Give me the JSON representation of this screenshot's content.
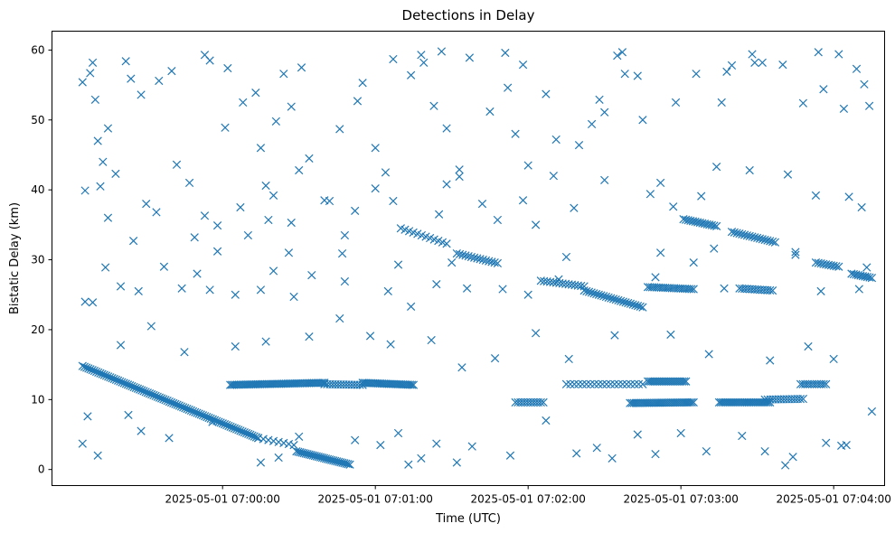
{
  "chart_data": {
    "type": "scatter",
    "title": "Detections in Delay",
    "xlabel": "Time (UTC)",
    "ylabel": "Bistatic Delay (km)",
    "marker": "x",
    "color": "#1f77b4",
    "grid": false,
    "xlim": [
      "2025-05-01 06:58:53",
      "2025-05-01 07:04:20"
    ],
    "ylim": [
      -2.3,
      62.7
    ],
    "xticks": [
      "2025-05-01 07:00:00",
      "2025-05-01 07:01:00",
      "2025-05-01 07:02:00",
      "2025-05-01 07:03:00",
      "2025-05-01 07:04:00"
    ],
    "yticks": [
      0,
      10,
      20,
      30,
      40,
      50,
      60
    ],
    "tracks": [
      {
        "t0": "2025-05-01 06:59:05",
        "t1": "2025-05-01 07:00:14",
        "y0": 14.8,
        "y1": 4.5,
        "n": 90
      },
      {
        "t0": "2025-05-01 07:00:14",
        "t1": "2025-05-01 07:00:28",
        "y0": 4.5,
        "y1": 3.5,
        "n": 8
      },
      {
        "t0": "2025-05-01 07:00:29",
        "t1": "2025-05-01 07:00:50",
        "y0": 2.6,
        "y1": 0.7,
        "n": 30
      },
      {
        "t0": "2025-05-01 07:00:03",
        "t1": "2025-05-01 07:00:40",
        "y0": 12.1,
        "y1": 12.4,
        "n": 55
      },
      {
        "t0": "2025-05-01 07:00:40",
        "t1": "2025-05-01 07:00:55",
        "y0": 12.2,
        "y1": 12.1,
        "n": 15
      },
      {
        "t0": "2025-05-01 07:00:55",
        "t1": "2025-05-01 07:01:15",
        "y0": 12.4,
        "y1": 12.1,
        "n": 30
      },
      {
        "t0": "2025-05-01 07:01:10",
        "t1": "2025-05-01 07:01:28",
        "y0": 34.5,
        "y1": 32.3,
        "n": 12
      },
      {
        "t0": "2025-05-01 07:01:32",
        "t1": "2025-05-01 07:01:48",
        "y0": 30.9,
        "y1": 29.5,
        "n": 15
      },
      {
        "t0": "2025-05-01 07:01:55",
        "t1": "2025-05-01 07:02:06",
        "y0": 9.6,
        "y1": 9.6,
        "n": 12
      },
      {
        "t0": "2025-05-01 07:02:05",
        "t1": "2025-05-01 07:02:22",
        "y0": 27.0,
        "y1": 26.2,
        "n": 15
      },
      {
        "t0": "2025-05-01 07:02:22",
        "t1": "2025-05-01 07:02:45",
        "y0": 25.6,
        "y1": 23.2,
        "n": 25
      },
      {
        "t0": "2025-05-01 07:02:15",
        "t1": "2025-05-01 07:02:45",
        "y0": 12.2,
        "y1": 12.2,
        "n": 20
      },
      {
        "t0": "2025-05-01 07:02:40",
        "t1": "2025-05-01 07:03:05",
        "y0": 9.5,
        "y1": 9.6,
        "n": 35
      },
      {
        "t0": "2025-05-01 07:02:47",
        "t1": "2025-05-01 07:03:05",
        "y0": 26.1,
        "y1": 25.8,
        "n": 22
      },
      {
        "t0": "2025-05-01 07:02:47",
        "t1": "2025-05-01 07:03:02",
        "y0": 12.6,
        "y1": 12.6,
        "n": 22
      },
      {
        "t0": "2025-05-01 07:03:01",
        "t1": "2025-05-01 07:03:14",
        "y0": 35.8,
        "y1": 34.8,
        "n": 15
      },
      {
        "t0": "2025-05-01 07:03:15",
        "t1": "2025-05-01 07:03:35",
        "y0": 9.6,
        "y1": 9.6,
        "n": 30
      },
      {
        "t0": "2025-05-01 07:03:20",
        "t1": "2025-05-01 07:03:37",
        "y0": 34.0,
        "y1": 32.5,
        "n": 18
      },
      {
        "t0": "2025-05-01 07:03:23",
        "t1": "2025-05-01 07:03:36",
        "y0": 25.9,
        "y1": 25.6,
        "n": 14
      },
      {
        "t0": "2025-05-01 07:03:33",
        "t1": "2025-05-01 07:03:48",
        "y0": 10.0,
        "y1": 10.1,
        "n": 15
      },
      {
        "t0": "2025-05-01 07:03:47",
        "t1": "2025-05-01 07:03:57",
        "y0": 12.2,
        "y1": 12.2,
        "n": 12
      },
      {
        "t0": "2025-05-01 07:03:53",
        "t1": "2025-05-01 07:04:02",
        "y0": 29.6,
        "y1": 29.0,
        "n": 10
      },
      {
        "t0": "2025-05-01 07:04:07",
        "t1": "2025-05-01 07:04:15",
        "y0": 28.0,
        "y1": 27.4,
        "n": 10
      }
    ],
    "points": [
      [
        "2025-05-01 06:59:05",
        55.4
      ],
      [
        "2025-05-01 06:59:08",
        56.7
      ],
      [
        "2025-05-01 06:59:09",
        58.2
      ],
      [
        "2025-05-01 06:59:10",
        52.9
      ],
      [
        "2025-05-01 06:59:11",
        47.0
      ],
      [
        "2025-05-01 06:59:13",
        44.0
      ],
      [
        "2025-05-01 06:59:15",
        48.8
      ],
      [
        "2025-05-01 06:59:18",
        42.3
      ],
      [
        "2025-05-01 06:59:22",
        58.4
      ],
      [
        "2025-05-01 06:59:24",
        55.9
      ],
      [
        "2025-05-01 06:59:28",
        53.6
      ],
      [
        "2025-05-01 06:59:35",
        55.6
      ],
      [
        "2025-05-01 06:59:40",
        57.0
      ],
      [
        "2025-05-01 06:59:47",
        41.0
      ],
      [
        "2025-05-01 06:59:53",
        59.3
      ],
      [
        "2025-05-01 06:59:55",
        58.5
      ],
      [
        "2025-05-01 07:00:01",
        48.9
      ],
      [
        "2025-05-01 07:00:02",
        57.4
      ],
      [
        "2025-05-01 07:00:08",
        52.5
      ],
      [
        "2025-05-01 07:00:13",
        53.9
      ],
      [
        "2025-05-01 07:00:15",
        46.0
      ],
      [
        "2025-05-01 07:00:17",
        40.6
      ],
      [
        "2025-05-01 07:00:21",
        49.8
      ],
      [
        "2025-05-01 07:00:24",
        56.6
      ],
      [
        "2025-05-01 07:00:27",
        51.9
      ],
      [
        "2025-05-01 07:00:31",
        57.5
      ],
      [
        "2025-05-01 07:00:34",
        44.5
      ],
      [
        "2025-05-01 07:00:40",
        38.5
      ],
      [
        "2025-05-01 07:00:46",
        48.7
      ],
      [
        "2025-05-01 07:00:53",
        52.7
      ],
      [
        "2025-05-01 07:00:55",
        55.3
      ],
      [
        "2025-05-01 07:01:00",
        46.0
      ],
      [
        "2025-05-01 07:01:04",
        42.5
      ],
      [
        "2025-05-01 07:01:07",
        58.7
      ],
      [
        "2025-05-01 07:01:14",
        56.4
      ],
      [
        "2025-05-01 07:01:18",
        59.3
      ],
      [
        "2025-05-01 07:01:19",
        58.2
      ],
      [
        "2025-05-01 07:01:23",
        52.0
      ],
      [
        "2025-05-01 07:01:26",
        59.8
      ],
      [
        "2025-05-01 07:01:28",
        48.8
      ],
      [
        "2025-05-01 07:01:33",
        42.9
      ],
      [
        "2025-05-01 07:01:37",
        58.9
      ],
      [
        "2025-05-01 07:01:45",
        51.2
      ],
      [
        "2025-05-01 07:01:51",
        59.6
      ],
      [
        "2025-05-01 07:01:52",
        54.6
      ],
      [
        "2025-05-01 07:01:55",
        48.0
      ],
      [
        "2025-05-01 07:01:58",
        57.9
      ],
      [
        "2025-05-01 07:02:00",
        43.5
      ],
      [
        "2025-05-01 07:02:07",
        53.7
      ],
      [
        "2025-05-01 07:02:11",
        47.2
      ],
      [
        "2025-05-01 07:02:20",
        46.4
      ],
      [
        "2025-05-01 07:02:25",
        49.4
      ],
      [
        "2025-05-01 07:02:28",
        52.9
      ],
      [
        "2025-05-01 07:02:30",
        51.1
      ],
      [
        "2025-05-01 07:02:35",
        59.2
      ],
      [
        "2025-05-01 07:02:37",
        59.7
      ],
      [
        "2025-05-01 07:02:38",
        56.6
      ],
      [
        "2025-05-01 07:02:43",
        56.3
      ],
      [
        "2025-05-01 07:02:45",
        50.0
      ],
      [
        "2025-05-01 07:02:52",
        41.0
      ],
      [
        "2025-05-01 07:02:58",
        52.5
      ],
      [
        "2025-05-01 07:03:06",
        56.6
      ],
      [
        "2025-05-01 07:03:16",
        52.5
      ],
      [
        "2025-05-01 07:03:18",
        56.9
      ],
      [
        "2025-05-01 07:03:20",
        57.8
      ],
      [
        "2025-05-01 07:03:28",
        59.4
      ],
      [
        "2025-05-01 07:03:29",
        58.2
      ],
      [
        "2025-05-01 07:03:32",
        58.2
      ],
      [
        "2025-05-01 07:03:40",
        57.9
      ],
      [
        "2025-05-01 07:03:48",
        52.4
      ],
      [
        "2025-05-01 07:03:54",
        59.7
      ],
      [
        "2025-05-01 07:03:56",
        54.4
      ],
      [
        "2025-05-01 07:04:02",
        59.4
      ],
      [
        "2025-05-01 07:04:04",
        51.6
      ],
      [
        "2025-05-01 07:04:09",
        57.3
      ],
      [
        "2025-05-01 07:04:12",
        55.1
      ],
      [
        "2025-05-01 07:04:14",
        52.0
      ],
      [
        "2025-05-01 06:59:06",
        39.9
      ],
      [
        "2025-05-01 06:59:12",
        40.5
      ],
      [
        "2025-05-01 06:59:15",
        36.0
      ],
      [
        "2025-05-01 06:59:25",
        32.7
      ],
      [
        "2025-05-01 06:59:30",
        38.0
      ],
      [
        "2025-05-01 06:59:34",
        36.8
      ],
      [
        "2025-05-01 06:59:42",
        43.6
      ],
      [
        "2025-05-01 06:59:49",
        33.2
      ],
      [
        "2025-05-01 06:59:53",
        36.3
      ],
      [
        "2025-05-01 06:59:58",
        34.9
      ],
      [
        "2025-05-01 07:00:07",
        37.5
      ],
      [
        "2025-05-01 07:00:10",
        33.5
      ],
      [
        "2025-05-01 07:00:18",
        35.7
      ],
      [
        "2025-05-01 07:00:20",
        39.2
      ],
      [
        "2025-05-01 07:00:27",
        35.3
      ],
      [
        "2025-05-01 07:00:30",
        42.8
      ],
      [
        "2025-05-01 07:00:42",
        38.4
      ],
      [
        "2025-05-01 07:00:47",
        30.9
      ],
      [
        "2025-05-01 07:00:52",
        37.0
      ],
      [
        "2025-05-01 07:01:00",
        40.2
      ],
      [
        "2025-05-01 07:01:07",
        38.4
      ],
      [
        "2025-05-01 07:01:25",
        36.5
      ],
      [
        "2025-05-01 07:01:28",
        40.8
      ],
      [
        "2025-05-01 07:01:33",
        41.9
      ],
      [
        "2025-05-01 07:01:42",
        38.0
      ],
      [
        "2025-05-01 07:01:48",
        35.7
      ],
      [
        "2025-05-01 07:01:58",
        38.5
      ],
      [
        "2025-05-01 07:02:03",
        35.0
      ],
      [
        "2025-05-01 07:02:10",
        42.0
      ],
      [
        "2025-05-01 07:02:18",
        37.4
      ],
      [
        "2025-05-01 07:02:30",
        41.4
      ],
      [
        "2025-05-01 07:02:48",
        39.4
      ],
      [
        "2025-05-01 07:02:57",
        37.6
      ],
      [
        "2025-05-01 07:03:08",
        39.1
      ],
      [
        "2025-05-01 07:03:14",
        43.3
      ],
      [
        "2025-05-01 07:03:27",
        42.8
      ],
      [
        "2025-05-01 07:03:42",
        42.2
      ],
      [
        "2025-05-01 07:03:53",
        39.2
      ],
      [
        "2025-05-01 07:04:06",
        39.0
      ],
      [
        "2025-05-01 07:04:11",
        37.5
      ],
      [
        "2025-05-01 06:59:06",
        24.0
      ],
      [
        "2025-05-01 06:59:09",
        23.9
      ],
      [
        "2025-05-01 06:59:14",
        28.9
      ],
      [
        "2025-05-01 06:59:20",
        26.2
      ],
      [
        "2025-05-01 06:59:27",
        25.5
      ],
      [
        "2025-05-01 06:59:37",
        29.0
      ],
      [
        "2025-05-01 06:59:44",
        25.9
      ],
      [
        "2025-05-01 06:59:50",
        28.0
      ],
      [
        "2025-05-01 06:59:55",
        25.7
      ],
      [
        "2025-05-01 07:00:05",
        25.0
      ],
      [
        "2025-05-01 07:00:15",
        25.7
      ],
      [
        "2025-05-01 07:00:20",
        28.4
      ],
      [
        "2025-05-01 07:00:28",
        24.7
      ],
      [
        "2025-05-01 07:00:35",
        27.8
      ],
      [
        "2025-05-01 07:00:48",
        26.9
      ],
      [
        "2025-05-01 07:01:05",
        25.5
      ],
      [
        "2025-05-01 07:01:14",
        23.3
      ],
      [
        "2025-05-01 07:01:24",
        26.5
      ],
      [
        "2025-05-01 07:01:36",
        25.9
      ],
      [
        "2025-05-01 07:01:50",
        25.8
      ],
      [
        "2025-05-01 07:02:00",
        25.0
      ],
      [
        "2025-05-01 07:02:12",
        27.2
      ],
      [
        "2025-05-01 07:02:50",
        27.5
      ],
      [
        "2025-05-01 07:03:05",
        29.6
      ],
      [
        "2025-05-01 07:03:17",
        25.9
      ],
      [
        "2025-05-01 07:03:45",
        30.7
      ],
      [
        "2025-05-01 07:03:55",
        25.5
      ],
      [
        "2025-05-01 07:04:10",
        25.8
      ],
      [
        "2025-05-01 06:59:05",
        3.7
      ],
      [
        "2025-05-01 06:59:07",
        7.6
      ],
      [
        "2025-05-01 06:59:11",
        2.0
      ],
      [
        "2025-05-01 06:59:23",
        7.8
      ],
      [
        "2025-05-01 06:59:28",
        5.5
      ],
      [
        "2025-05-01 06:59:39",
        4.5
      ],
      [
        "2025-05-01 06:59:56",
        6.8
      ],
      [
        "2025-05-01 07:00:15",
        1.0
      ],
      [
        "2025-05-01 07:00:22",
        1.7
      ],
      [
        "2025-05-01 07:00:30",
        4.7
      ],
      [
        "2025-05-01 07:00:52",
        4.2
      ],
      [
        "2025-05-01 07:01:02",
        3.5
      ],
      [
        "2025-05-01 07:01:09",
        5.2
      ],
      [
        "2025-05-01 07:01:13",
        0.7
      ],
      [
        "2025-05-01 07:01:18",
        1.6
      ],
      [
        "2025-05-01 07:01:24",
        3.7
      ],
      [
        "2025-05-01 07:01:32",
        1.0
      ],
      [
        "2025-05-01 07:01:38",
        3.3
      ],
      [
        "2025-05-01 07:01:53",
        2.0
      ],
      [
        "2025-05-01 07:02:07",
        7.0
      ],
      [
        "2025-05-01 07:02:19",
        2.3
      ],
      [
        "2025-05-01 07:02:27",
        3.1
      ],
      [
        "2025-05-01 07:02:33",
        1.6
      ],
      [
        "2025-05-01 07:02:43",
        5.0
      ],
      [
        "2025-05-01 07:02:50",
        2.2
      ],
      [
        "2025-05-01 07:03:00",
        5.2
      ],
      [
        "2025-05-01 07:03:10",
        2.6
      ],
      [
        "2025-05-01 07:03:24",
        4.8
      ],
      [
        "2025-05-01 07:03:33",
        2.6
      ],
      [
        "2025-05-01 07:03:41",
        0.6
      ],
      [
        "2025-05-01 07:03:44",
        1.8
      ],
      [
        "2025-05-01 07:03:57",
        3.8
      ],
      [
        "2025-05-01 07:04:03",
        3.4
      ],
      [
        "2025-05-01 07:04:05",
        3.5
      ],
      [
        "2025-05-01 07:04:15",
        8.3
      ],
      [
        "2025-05-01 06:59:20",
        17.8
      ],
      [
        "2025-05-01 06:59:32",
        20.5
      ],
      [
        "2025-05-01 06:59:45",
        16.8
      ],
      [
        "2025-05-01 07:00:05",
        17.6
      ],
      [
        "2025-05-01 07:00:17",
        18.3
      ],
      [
        "2025-05-01 07:00:34",
        19.0
      ],
      [
        "2025-05-01 07:00:46",
        21.6
      ],
      [
        "2025-05-01 07:00:58",
        19.1
      ],
      [
        "2025-05-01 07:01:06",
        17.9
      ],
      [
        "2025-05-01 07:01:22",
        18.5
      ],
      [
        "2025-05-01 07:01:34",
        14.6
      ],
      [
        "2025-05-01 07:01:47",
        15.9
      ],
      [
        "2025-05-01 07:02:03",
        19.5
      ],
      [
        "2025-05-01 07:02:16",
        15.8
      ],
      [
        "2025-05-01 07:02:34",
        19.2
      ],
      [
        "2025-05-01 07:02:56",
        19.3
      ],
      [
        "2025-05-01 07:03:11",
        16.5
      ],
      [
        "2025-05-01 07:03:35",
        15.6
      ],
      [
        "2025-05-01 07:03:50",
        17.6
      ],
      [
        "2025-05-01 07:04:00",
        15.8
      ],
      [
        "2025-05-01 06:59:58",
        31.2
      ],
      [
        "2025-05-01 07:00:26",
        31.0
      ],
      [
        "2025-05-01 07:00:48",
        33.5
      ],
      [
        "2025-05-01 07:01:09",
        29.3
      ],
      [
        "2025-05-01 07:01:30",
        29.6
      ],
      [
        "2025-05-01 07:02:15",
        30.4
      ],
      [
        "2025-05-01 07:02:52",
        31.0
      ],
      [
        "2025-05-01 07:03:13",
        31.6
      ],
      [
        "2025-05-01 07:03:45",
        31.1
      ],
      [
        "2025-05-01 07:04:13",
        28.9
      ]
    ]
  }
}
